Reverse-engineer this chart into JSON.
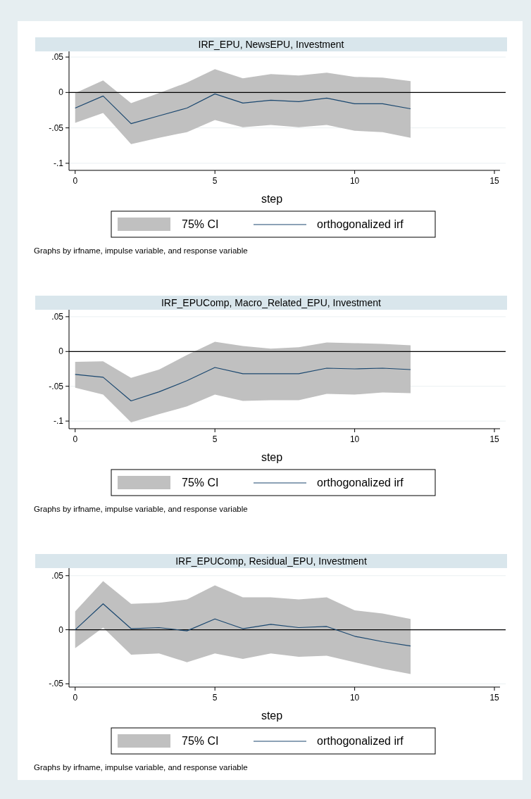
{
  "chart_data": [
    {
      "type": "line",
      "title": "IRF_EPU, NewsEPU, Investment",
      "xlabel": "step",
      "annotations": [
        "75% CI",
        "Graphs by irfname, impulse variable, and response variable"
      ],
      "grid": "y",
      "legend": "bottom",
      "xlim": [
        -0.22,
        15.2
      ],
      "xticks": [
        0,
        5,
        10,
        15
      ],
      "ylim": [
        -0.11,
        0.058
      ],
      "yticks": [
        {
          "value": 0.05,
          "label": ".05"
        },
        {
          "value": 0,
          "label": "0"
        },
        {
          "value": -0.05,
          "label": "-.05"
        },
        {
          "value": -0.1,
          "label": "-.1"
        }
      ],
      "ref_lines": [
        {
          "axis": "y",
          "value": 0,
          "color": "#000000"
        }
      ],
      "x": [
        0,
        1,
        2,
        3,
        4,
        5,
        6,
        7,
        8,
        9,
        10,
        11,
        12
      ],
      "series": [
        {
          "name": "orthogonalized irf",
          "color": "#1a476f",
          "values": [
            -0.022,
            -0.005,
            -0.044,
            -0.033,
            -0.022,
            -0.002,
            -0.015,
            -0.011,
            -0.013,
            -0.008,
            -0.016,
            -0.016,
            -0.023
          ],
          "lower": [
            -0.043,
            -0.029,
            -0.073,
            -0.064,
            -0.056,
            -0.039,
            -0.049,
            -0.046,
            -0.049,
            -0.046,
            -0.054,
            -0.056,
            -0.064
          ],
          "upper": [
            -0.001,
            0.017,
            -0.015,
            -0.001,
            0.014,
            0.033,
            0.02,
            0.026,
            0.024,
            0.028,
            0.022,
            0.021,
            0.016
          ]
        }
      ]
    },
    {
      "type": "line",
      "title": "IRF_EPUComp, Macro_Related_EPU, Investment",
      "xlabel": "step",
      "annotations": [
        "75% CI",
        "Graphs by irfname, impulse variable, and response variable"
      ],
      "grid": "y",
      "legend": "bottom",
      "xlim": [
        -0.22,
        15.2
      ],
      "xticks": [
        0,
        5,
        10,
        15
      ],
      "ylim": [
        -0.111,
        0.06
      ],
      "yticks": [
        {
          "value": 0.05,
          "label": ".05"
        },
        {
          "value": 0,
          "label": "0"
        },
        {
          "value": -0.05,
          "label": "-.05"
        },
        {
          "value": -0.1,
          "label": "-.1"
        }
      ],
      "ref_lines": [
        {
          "axis": "y",
          "value": 0,
          "color": "#000000"
        }
      ],
      "x": [
        0,
        1,
        2,
        3,
        4,
        5,
        6,
        7,
        8,
        9,
        10,
        11,
        12
      ],
      "series": [
        {
          "name": "orthogonalized irf",
          "color": "#1a476f",
          "values": [
            -0.033,
            -0.037,
            -0.071,
            -0.058,
            -0.042,
            -0.023,
            -0.032,
            -0.032,
            -0.032,
            -0.024,
            -0.025,
            -0.024,
            -0.026
          ],
          "lower": [
            -0.052,
            -0.062,
            -0.102,
            -0.09,
            -0.079,
            -0.062,
            -0.071,
            -0.07,
            -0.07,
            -0.061,
            -0.062,
            -0.059,
            -0.06
          ],
          "upper": [
            -0.015,
            -0.014,
            -0.038,
            -0.026,
            -0.005,
            0.014,
            0.008,
            0.004,
            0.006,
            0.013,
            0.012,
            0.011,
            0.009
          ]
        }
      ]
    },
    {
      "type": "line",
      "title": "IRF_EPUComp, Residual_EPU, Investment",
      "xlabel": "step",
      "annotations": [
        "75% CI",
        "Graphs by irfname, impulse variable, and response variable"
      ],
      "grid": "y",
      "legend": "bottom",
      "xlim": [
        -0.22,
        15.2
      ],
      "xticks": [
        0,
        5,
        10,
        15
      ],
      "ylim": [
        -0.053,
        0.057
      ],
      "yticks": [
        {
          "value": 0.05,
          "label": ".05"
        },
        {
          "value": 0,
          "label": "0"
        },
        {
          "value": -0.05,
          "label": "-.05"
        }
      ],
      "ref_lines": [
        {
          "axis": "y",
          "value": 0,
          "color": "#000000"
        }
      ],
      "x": [
        0,
        1,
        2,
        3,
        4,
        5,
        6,
        7,
        8,
        9,
        10,
        11,
        12
      ],
      "series": [
        {
          "name": "orthogonalized irf",
          "color": "#1a476f",
          "values": [
            0,
            0.024,
            0.001,
            0.002,
            -0.001,
            0.01,
            0.001,
            0.005,
            0.002,
            0.003,
            -0.006,
            -0.011,
            -0.015
          ],
          "lower": [
            -0.017,
            0.002,
            -0.023,
            -0.022,
            -0.03,
            -0.022,
            -0.027,
            -0.022,
            -0.025,
            -0.024,
            -0.03,
            -0.036,
            -0.041
          ],
          "upper": [
            0.017,
            0.045,
            0.024,
            0.025,
            0.028,
            0.041,
            0.03,
            0.03,
            0.028,
            0.03,
            0.018,
            0.015,
            0.01
          ]
        }
      ]
    }
  ]
}
